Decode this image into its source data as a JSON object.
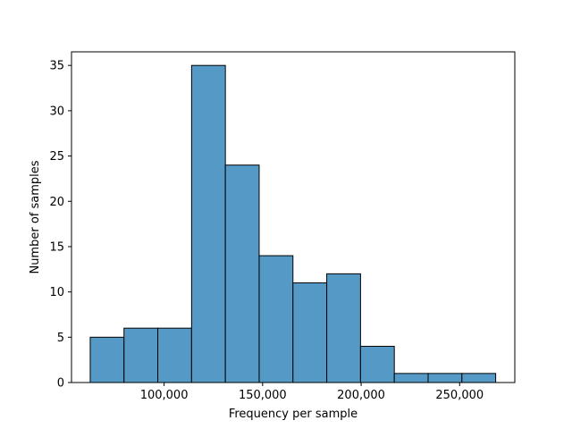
{
  "chart_data": {
    "type": "bar",
    "title": "",
    "xlabel": "Frequency per sample",
    "ylabel": "Number of samples",
    "bar_color": "#5599c7",
    "bins": [
      {
        "x0": 62500,
        "x1": 79650,
        "count": 5
      },
      {
        "x0": 79650,
        "x1": 96800,
        "count": 6
      },
      {
        "x0": 96800,
        "x1": 113950,
        "count": 6
      },
      {
        "x0": 113950,
        "x1": 131100,
        "count": 35
      },
      {
        "x0": 131100,
        "x1": 148250,
        "count": 24
      },
      {
        "x0": 148250,
        "x1": 165400,
        "count": 14
      },
      {
        "x0": 165400,
        "x1": 182550,
        "count": 11
      },
      {
        "x0": 182550,
        "x1": 199700,
        "count": 12
      },
      {
        "x0": 199700,
        "x1": 216850,
        "count": 4
      },
      {
        "x0": 216850,
        "x1": 234000,
        "count": 1
      },
      {
        "x0": 234000,
        "x1": 251150,
        "count": 1
      },
      {
        "x0": 251150,
        "x1": 268300,
        "count": 1
      }
    ],
    "xlim": [
      53000,
      278000
    ],
    "ylim": [
      0,
      36.5
    ],
    "xticks": [
      100000,
      150000,
      200000,
      250000
    ],
    "xtick_labels": [
      "100,000",
      "150,000",
      "200,000",
      "250,000"
    ],
    "yticks": [
      0,
      5,
      10,
      15,
      20,
      25,
      30,
      35
    ],
    "ytick_labels": [
      "0",
      "5",
      "10",
      "15",
      "20",
      "25",
      "30",
      "35"
    ],
    "grid": false,
    "legend": "none"
  }
}
